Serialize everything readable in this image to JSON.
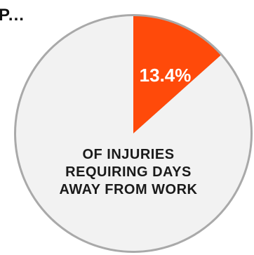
{
  "header": {
    "fragment": "P..."
  },
  "chart_data": {
    "type": "pie",
    "slices": [
      {
        "label": "13.4%",
        "value": 13.4,
        "color": "#ff4a0a"
      },
      {
        "label": "",
        "value": 86.6,
        "color": "#f2f2f2"
      }
    ],
    "ring_color": "#a9a9a9",
    "caption": "OF INJURIES REQUIRING DAYS AWAY FROM WORK"
  }
}
